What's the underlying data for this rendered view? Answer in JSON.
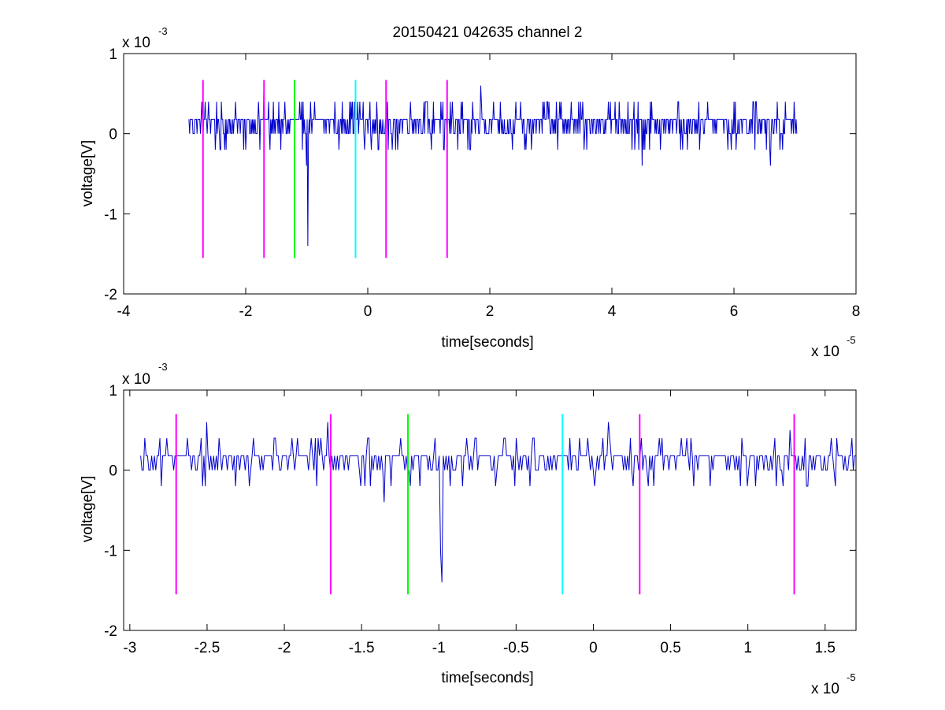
{
  "chart_data": [
    {
      "type": "line",
      "title": "20150421 042635 channel 2",
      "xlabel": "time[seconds]",
      "ylabel": "voltage[V]",
      "xlim": [
        -4,
        8
      ],
      "ylim": [
        -2,
        1
      ],
      "x_multiplier": {
        "base": "x 10",
        "exp": "-5"
      },
      "y_multiplier": {
        "base": "x 10",
        "exp": "-3"
      },
      "xticks": [
        "-4",
        "-2",
        "0",
        "2",
        "4",
        "6",
        "8"
      ],
      "xtick_values": [
        -4,
        -2,
        0,
        2,
        4,
        6,
        8
      ],
      "yticks": [
        "1",
        "0",
        "-1",
        "-2"
      ],
      "ytick_values": [
        1,
        0,
        -1,
        -2
      ],
      "grid": false,
      "series": [
        {
          "color": "#0000cc",
          "x_range": [
            -2.93,
            7.03
          ],
          "baseline": 0.18,
          "levels": [
            0.0,
            0.18,
            0.4,
            -0.2
          ],
          "extrema": [
            {
              "x": -2.5,
              "y": -0.2
            },
            {
              "x": -1.7,
              "y": 0.6
            },
            {
              "x": -1.0,
              "y": -0.4
            },
            {
              "x": -0.98,
              "y": -1.4
            },
            {
              "x": 1.85,
              "y": 0.6
            },
            {
              "x": 4.5,
              "y": -0.4
            },
            {
              "x": 6.6,
              "y": -0.4
            }
          ]
        }
      ],
      "markers": [
        {
          "x": -2.7,
          "color": "#ff00ff",
          "y_range": [
            -1.55,
            0.67
          ]
        },
        {
          "x": -1.7,
          "color": "#ff00ff",
          "y_range": [
            -1.55,
            0.67
          ]
        },
        {
          "x": -1.2,
          "color": "#00ff00",
          "y_range": [
            -1.55,
            0.67
          ]
        },
        {
          "x": -0.2,
          "color": "#00ffff",
          "y_range": [
            -1.55,
            0.67
          ]
        },
        {
          "x": 0.3,
          "color": "#ff00ff",
          "y_range": [
            -1.55,
            0.67
          ]
        },
        {
          "x": 1.3,
          "color": "#ff00ff",
          "y_range": [
            -1.55,
            0.67
          ]
        }
      ]
    },
    {
      "type": "line",
      "title": "",
      "xlabel": "time[seconds]",
      "ylabel": "voltage[V]",
      "xlim": [
        -3.04,
        1.7
      ],
      "ylim": [
        -2,
        1
      ],
      "x_multiplier": {
        "base": "x 10",
        "exp": "-5"
      },
      "y_multiplier": {
        "base": "x 10",
        "exp": "-3"
      },
      "xticks": [
        "-3",
        "-2.5",
        "-2",
        "-1.5",
        "-1",
        "-0.5",
        "0",
        "0.5",
        "1",
        "1.5"
      ],
      "xtick_values": [
        -3,
        -2.5,
        -2,
        -1.5,
        -1,
        -0.5,
        0,
        0.5,
        1,
        1.5
      ],
      "yticks": [
        "1",
        "0",
        "-1",
        "-2"
      ],
      "ytick_values": [
        1,
        0,
        -1,
        -2
      ],
      "grid": false,
      "series": [
        {
          "color": "#0000cc",
          "x_range": [
            -2.93,
            1.7
          ],
          "baseline": 0.18,
          "levels": [
            0.0,
            0.18,
            0.4,
            -0.2
          ],
          "extrema": [
            {
              "x": -2.8,
              "y": -0.2
            },
            {
              "x": -2.5,
              "y": 0.6
            },
            {
              "x": -1.72,
              "y": 0.6
            },
            {
              "x": -1.35,
              "y": -0.4
            },
            {
              "x": -0.99,
              "y": -1.0
            },
            {
              "x": -0.98,
              "y": -1.4
            },
            {
              "x": 0.1,
              "y": 0.6
            },
            {
              "x": 1.27,
              "y": 0.5
            }
          ]
        }
      ],
      "markers": [
        {
          "x": -2.7,
          "color": "#ff00ff",
          "y_range": [
            -1.55,
            0.7
          ]
        },
        {
          "x": -1.7,
          "color": "#ff00ff",
          "y_range": [
            -1.55,
            0.7
          ]
        },
        {
          "x": -1.2,
          "color": "#00ff00",
          "y_range": [
            -1.55,
            0.7
          ]
        },
        {
          "x": -0.2,
          "color": "#00ffff",
          "y_range": [
            -1.55,
            0.7
          ]
        },
        {
          "x": 0.3,
          "color": "#ff00ff",
          "y_range": [
            -1.55,
            0.7
          ]
        },
        {
          "x": 1.3,
          "color": "#ff00ff",
          "y_range": [
            -1.55,
            0.7
          ]
        }
      ]
    }
  ]
}
